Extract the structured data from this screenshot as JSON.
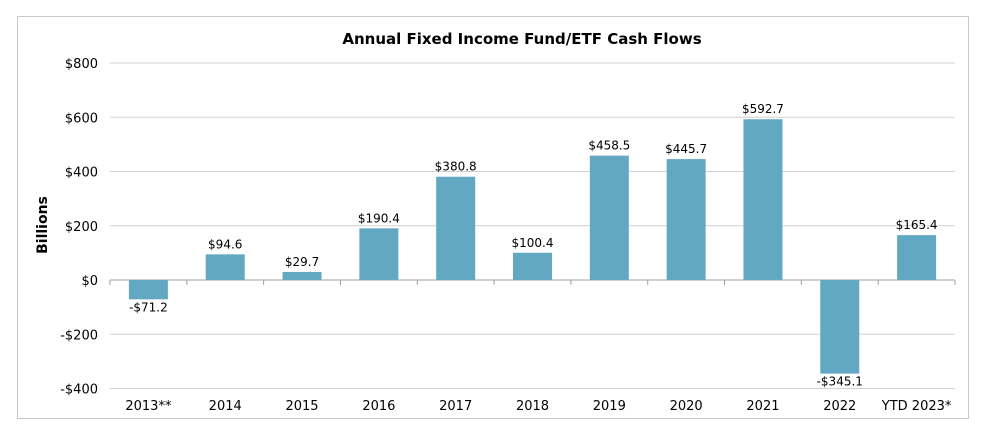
{
  "chart_data": {
    "type": "bar",
    "title": "Annual Fixed Income Fund/ETF Cash Flows",
    "xlabel": "",
    "ylabel": "Billions",
    "categories": [
      "2013**",
      "2014",
      "2015",
      "2016",
      "2017",
      "2018",
      "2019",
      "2020",
      "2021",
      "2022",
      "YTD 2023*"
    ],
    "values": [
      -71.2,
      94.6,
      29.7,
      190.4,
      380.8,
      100.4,
      458.5,
      445.7,
      592.7,
      -345.1,
      165.4
    ],
    "data_labels": [
      "-$71.2",
      "$94.6",
      "$29.7",
      "$190.4",
      "$380.8",
      "$100.4",
      "$458.5",
      "$445.7",
      "$592.7",
      "-$345.1",
      "$165.4"
    ],
    "yticks": [
      800,
      600,
      400,
      200,
      0,
      -200,
      -400
    ],
    "ytick_labels": [
      "$800",
      "$600",
      "$400",
      "$200",
      "$0",
      "-$200",
      "-$400"
    ],
    "ylim": [
      -400,
      800
    ],
    "grid": true,
    "bar_color": "#63a8c2",
    "grid_color": "#d0d0d0"
  }
}
